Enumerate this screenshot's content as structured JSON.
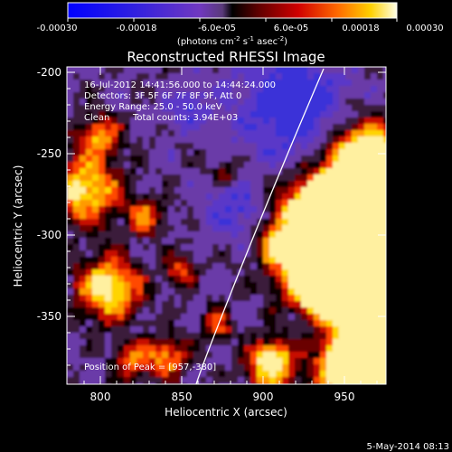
{
  "colorbar": {
    "ticks": [
      "-0.00030",
      "-0.00018",
      "-6.0e-05",
      "6.0e-05",
      "0.00018",
      "0.00030"
    ],
    "units_main": "(photons cm",
    "units_exp1": "-2",
    "units_mid": " s",
    "units_exp2": "-1",
    "units_mid2": " asec",
    "units_exp3": "-2",
    "units_close": ")"
  },
  "plot": {
    "title": "Reconstructed RHESSI Image",
    "xlabel": "Heliocentric X (arcsec)",
    "ylabel": "Heliocentric Y (arcsec)",
    "xticks": [
      "800",
      "850",
      "900",
      "950"
    ],
    "yticks": [
      "-200",
      "-250",
      "-300",
      "-350"
    ],
    "xlim": [
      782,
      972
    ],
    "ylim": [
      -390,
      -196
    ]
  },
  "annotations": {
    "line1": "16-Jul-2012 14:41:56.000 to 14:44:24.000",
    "line2": "Detectors: 3F 5F 6F 7F 8F 9F, Att 0",
    "line3": "Energy Range: 25.0 - 50.0 keV",
    "line4a": "Clean",
    "line4b": "Total counts: 3.94E+03",
    "peak": "Position of Peak = [957,-380]"
  },
  "footer": {
    "date": "5-May-2014 08:13"
  },
  "colors": {
    "axis": "#ffffff",
    "background": "#000000"
  }
}
